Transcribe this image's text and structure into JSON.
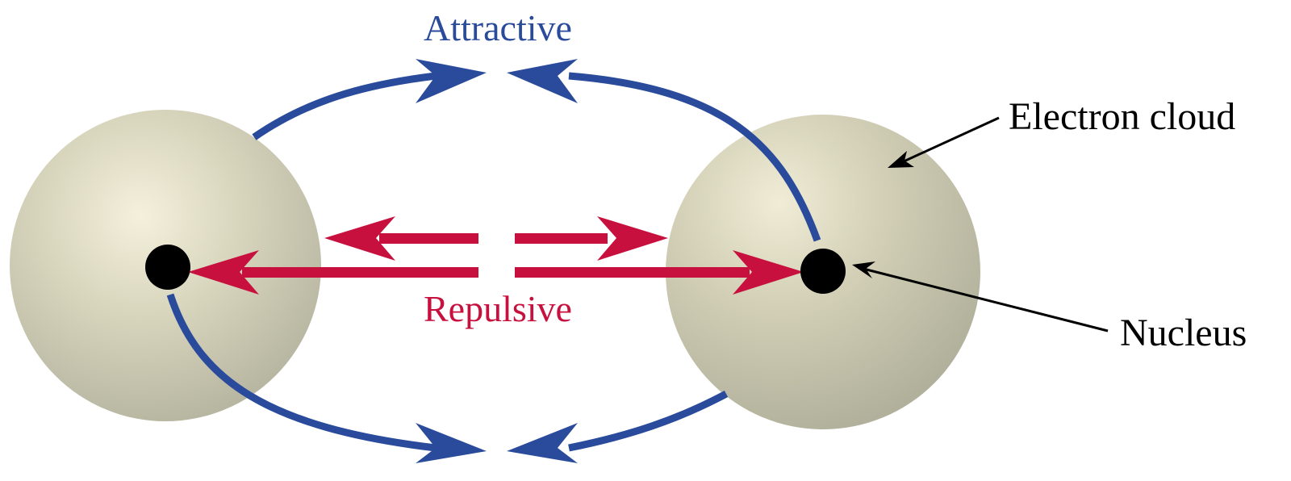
{
  "labels": {
    "attractive": "Attractive",
    "repulsive": "Repulsive",
    "electron_cloud": "Electron cloud",
    "nucleus": "Nucleus"
  },
  "colors": {
    "attractive": "#2a4b9b",
    "repulsive": "#c8103e",
    "cloud_highlight": "#f2eedb",
    "cloud_mid": "#ccc9b2",
    "cloud_edge": "#b3b29d",
    "nucleus": "#000000",
    "pointer": "#000000",
    "text": "#000000",
    "background": "#ffffff"
  },
  "icons": {
    "atoms": [
      "sphere-icon",
      "sphere-icon"
    ],
    "nuclei": [
      "dot-icon",
      "dot-icon"
    ],
    "arrowheads": "arrowhead-icon"
  }
}
